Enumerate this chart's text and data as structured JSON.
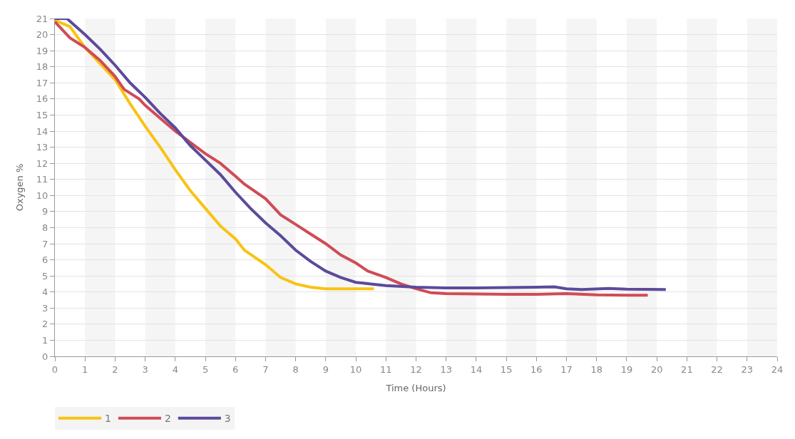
{
  "chart_data": {
    "type": "line",
    "xlabel": "Time (Hours)",
    "ylabel": "Oxygen %",
    "xlim": [
      0,
      24
    ],
    "xticks": [
      0,
      1,
      2,
      3,
      4,
      5,
      6,
      7,
      8,
      9,
      10,
      11,
      12,
      13,
      14,
      15,
      16,
      17,
      18,
      19,
      20,
      21,
      22,
      23,
      24
    ],
    "ylim": [
      0,
      21
    ],
    "yticks": [
      0,
      1,
      2,
      3,
      4,
      5,
      6,
      7,
      8,
      9,
      10,
      11,
      12,
      13,
      14,
      15,
      16,
      17,
      18,
      19,
      20,
      21
    ],
    "grid": "y",
    "legend": "bottom left",
    "marker": "none",
    "line_style": "solid",
    "bands": [
      {
        "axis": "x",
        "from": 1,
        "to": 2,
        "color": "#f5f5f5"
      },
      {
        "axis": "x",
        "from": 3,
        "to": 4,
        "color": "#f5f5f5"
      },
      {
        "axis": "x",
        "from": 5,
        "to": 6,
        "color": "#f5f5f5"
      },
      {
        "axis": "x",
        "from": 7,
        "to": 8,
        "color": "#f5f5f5"
      },
      {
        "axis": "x",
        "from": 9,
        "to": 10,
        "color": "#f5f5f5"
      },
      {
        "axis": "x",
        "from": 11,
        "to": 12,
        "color": "#f5f5f5"
      },
      {
        "axis": "x",
        "from": 13,
        "to": 14,
        "color": "#f5f5f5"
      },
      {
        "axis": "x",
        "from": 15,
        "to": 16,
        "color": "#f5f5f5"
      },
      {
        "axis": "x",
        "from": 17,
        "to": 18,
        "color": "#f5f5f5"
      },
      {
        "axis": "x",
        "from": 19,
        "to": 20,
        "color": "#f5f5f5"
      },
      {
        "axis": "x",
        "from": 21,
        "to": 22,
        "color": "#f5f5f5"
      },
      {
        "axis": "x",
        "from": 23,
        "to": 24,
        "color": "#f5f5f5"
      }
    ],
    "series": [
      {
        "name": "1",
        "color": "#f8c313",
        "x": [
          0,
          0.5,
          1,
          1.5,
          2,
          2.5,
          3,
          3.5,
          4,
          4.5,
          5,
          5.5,
          6,
          6.3,
          7,
          7.5,
          8,
          8.5,
          9,
          10,
          10.6
        ],
        "values": [
          20.9,
          20.5,
          19.2,
          18.2,
          17.2,
          15.7,
          14.3,
          13.0,
          11.6,
          10.3,
          9.2,
          8.1,
          7.3,
          6.6,
          5.7,
          4.9,
          4.5,
          4.3,
          4.2,
          4.2,
          4.2
        ]
      },
      {
        "name": "2",
        "color": "#cf4c56",
        "x": [
          0,
          0.5,
          1,
          1.5,
          2,
          2.3,
          2.8,
          3,
          3.5,
          4,
          4.5,
          5,
          5.5,
          6,
          6.3,
          7,
          7.5,
          8,
          8.5,
          9,
          9.5,
          10,
          10.4,
          11,
          11.5,
          12,
          12.5,
          13,
          14,
          15,
          16,
          17,
          18,
          19,
          19.7
        ],
        "values": [
          20.8,
          19.8,
          19.2,
          18.4,
          17.4,
          16.6,
          16.0,
          15.6,
          14.8,
          14.0,
          13.3,
          12.6,
          12.0,
          11.2,
          10.7,
          9.8,
          8.8,
          8.2,
          7.6,
          7.0,
          6.3,
          5.8,
          5.3,
          4.9,
          4.5,
          4.2,
          3.95,
          3.9,
          3.88,
          3.85,
          3.85,
          3.9,
          3.82,
          3.8,
          3.8
        ]
      },
      {
        "name": "3",
        "color": "#5c4a9b",
        "x": [
          0,
          0.4,
          1,
          1.5,
          2,
          2.5,
          3,
          3.5,
          4,
          4.5,
          5,
          5.5,
          6,
          6.5,
          7,
          7.5,
          8,
          8.5,
          9,
          9.5,
          10,
          10.5,
          11,
          12,
          13,
          14,
          15,
          16,
          16.6,
          17,
          17.5,
          18.4,
          19,
          20.3
        ],
        "values": [
          21,
          21,
          20.0,
          19.1,
          18.1,
          17.0,
          16.1,
          15.1,
          14.2,
          13.1,
          12.2,
          11.3,
          10.2,
          9.2,
          8.3,
          7.5,
          6.6,
          5.9,
          5.3,
          4.9,
          4.6,
          4.5,
          4.4,
          4.3,
          4.25,
          4.25,
          4.28,
          4.3,
          4.32,
          4.2,
          4.15,
          4.22,
          4.18,
          4.15
        ]
      }
    ]
  }
}
